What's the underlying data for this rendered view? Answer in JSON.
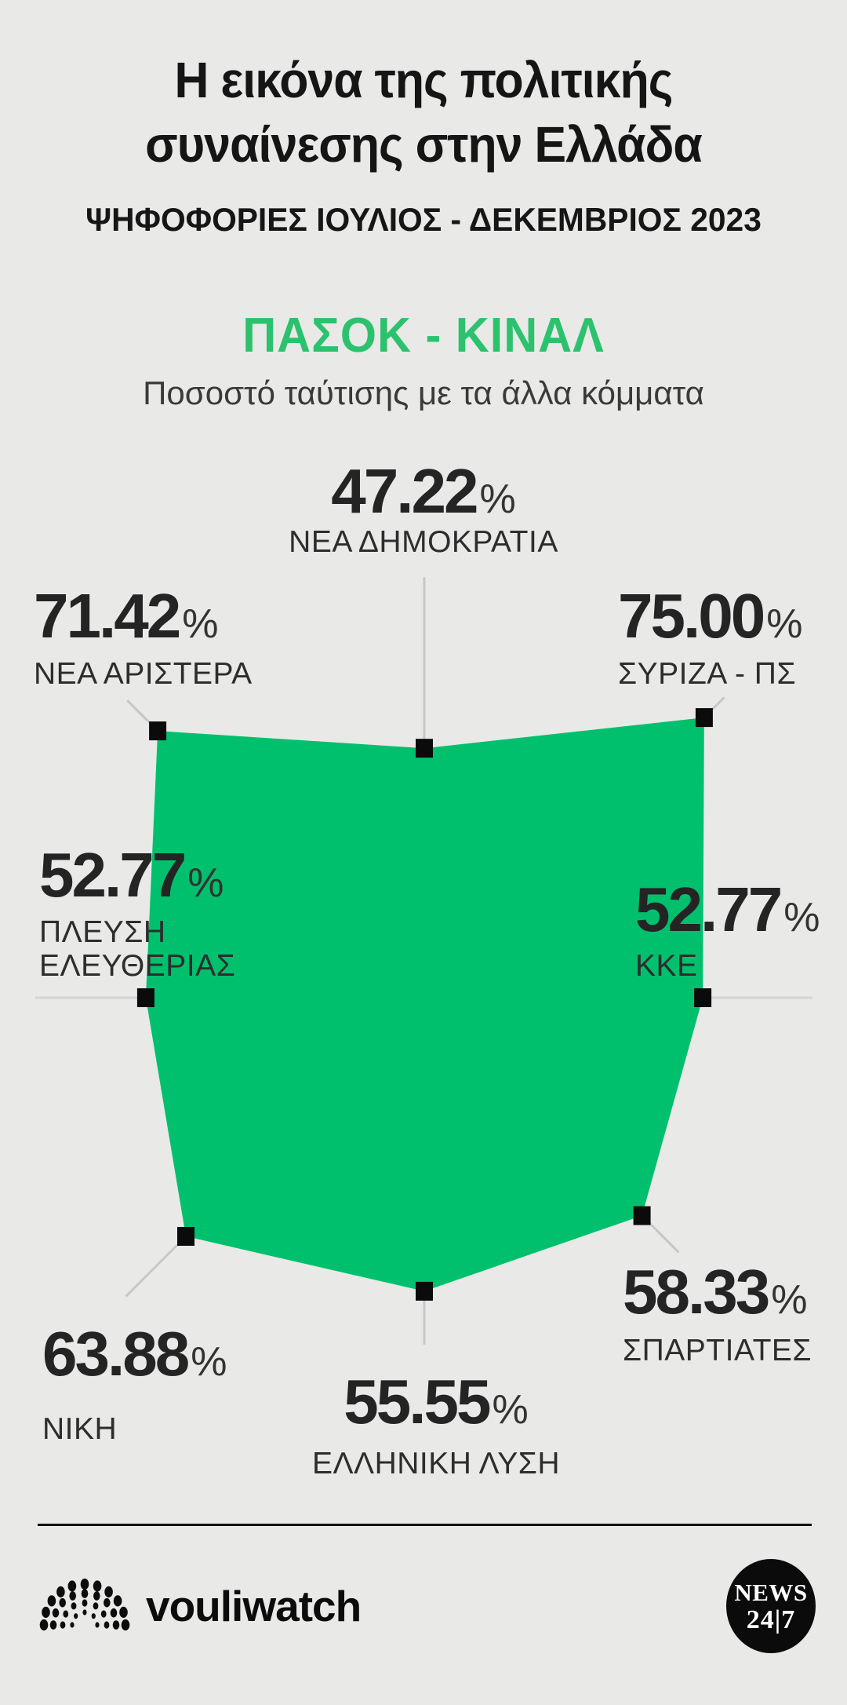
{
  "header": {
    "title": "Η εικόνα της πολιτικής\nσυναίνεσης στην Ελλάδα",
    "subtitle": "ΨΗΦΟΦΟΡΙΕΣ ΙΟΥΛΙΟΣ - ΔΕΚΕΜΒΡΙΟΣ 2023"
  },
  "chart_header": {
    "party": "ΠΑΣΟΚ - ΚΙΝΑΛ",
    "caption": "Ποσοστό ταύτισης με τα άλλα κόμματα"
  },
  "percent_sign": "%",
  "parties": [
    {
      "id": "nea-dimokratia",
      "name": "ΝΕΑ ΔΗΜΟΚΡΑΤΙΑ",
      "value": "47.22",
      "value_num": 47.22
    },
    {
      "id": "syriza-ps",
      "name": "ΣΥΡΙΖΑ - ΠΣ",
      "value": "75.00",
      "value_num": 75.0
    },
    {
      "id": "kke",
      "name": "ΚΚΕ",
      "value": "52.77",
      "value_num": 52.77
    },
    {
      "id": "spartiates",
      "name": "ΣΠΑΡΤΙΑΤΕΣ",
      "value": "58.33",
      "value_num": 58.33
    },
    {
      "id": "elliniki-lysi",
      "name": "ΕΛΛΗΝΙΚΗ ΛΥΣΗ",
      "value": "55.55",
      "value_num": 55.55
    },
    {
      "id": "niki",
      "name": "ΝΙΚΗ",
      "value": "63.88",
      "value_num": 63.88
    },
    {
      "id": "plefsi-eleftherias",
      "name": "ΠΛΕΥΣΗ\nΕΛΕΥΘΕΡΙΑΣ",
      "value": "52.77",
      "value_num": 52.77
    },
    {
      "id": "nea-aristera",
      "name": "ΝΕΑ ΑΡΙΣΤΕΡΑ",
      "value": "71.42",
      "value_num": 71.42
    }
  ],
  "chart_data": {
    "type": "radar",
    "title": "ΠΑΣΟΚ - ΚΙΝΑΛ",
    "subtitle": "Ποσοστό ταύτισης με τα άλλα κόμματα",
    "period": "ΨΗΦΟΦΟΡΙΕΣ ΙΟΥΛΙΟΣ - ΔΕΚΕΜΒΡΙΟΣ 2023",
    "unit": "%",
    "axis_range": [
      0,
      100
    ],
    "categories": [
      "ΝΕΑ ΔΗΜΟΚΡΑΤΙΑ",
      "ΣΥΡΙΖΑ - ΠΣ",
      "ΚΚΕ",
      "ΣΠΑΡΤΙΑΤΕΣ",
      "ΕΛΛΗΝΙΚΗ ΛΥΣΗ",
      "ΝΙΚΗ",
      "ΠΛΕΥΣΗ ΕΛΕΥΘΕΡΙΑΣ",
      "ΝΕΑ ΑΡΙΣΤΕΡΑ"
    ],
    "series": [
      {
        "name": "ΠΑΣΟΚ - ΚΙΝΑΛ",
        "values": [
          47.22,
          75.0,
          52.77,
          58.33,
          55.55,
          63.88,
          52.77,
          71.42
        ]
      }
    ],
    "legend_position": "none",
    "grid": false
  },
  "colors": {
    "background": "#e9e9e8",
    "polygon_green": "#00c06d",
    "heading_green": "#2cc26d",
    "marker_black": "#0b0b0b",
    "leader_gray": "#c7c7c7",
    "axis_gray": "#d3d3d3"
  },
  "footer": {
    "brand": "vouliwatch",
    "badge_line1": "NEWS",
    "badge_line2": "24|7"
  }
}
